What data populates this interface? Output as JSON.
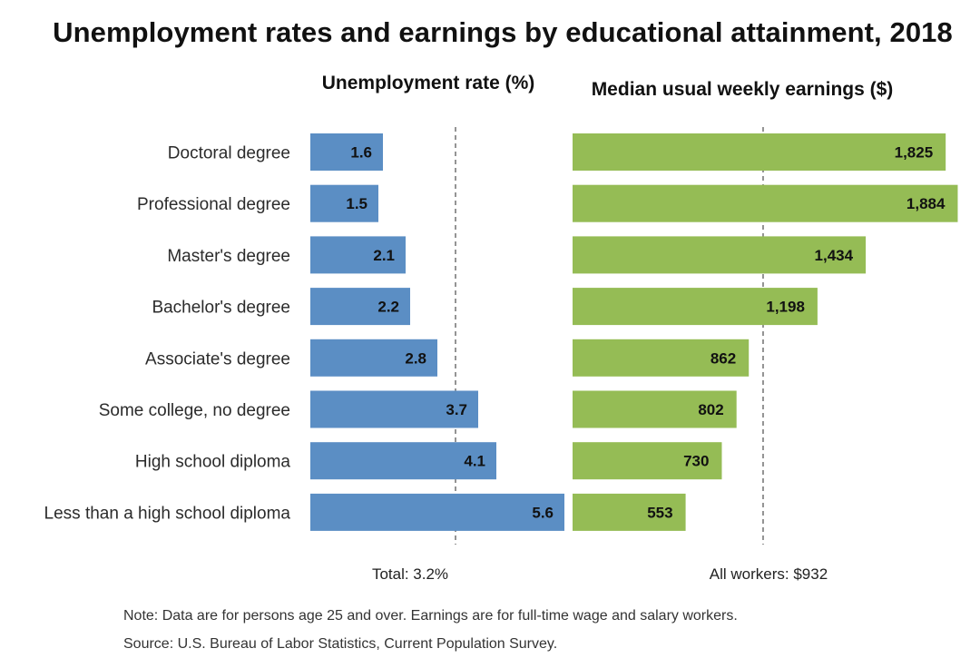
{
  "chart_data": {
    "title": "Unemployment rates and earnings by educational attainment, 2018",
    "type": "bar",
    "orientation": "horizontal",
    "categories": [
      "Doctoral degree",
      "Professional degree",
      "Master's degree",
      "Bachelor's degree",
      "Associate's degree",
      "Some college, no degree",
      "High school diploma",
      "Less than a high school diploma"
    ],
    "series": [
      {
        "name": "Unemployment rate (%)",
        "color": "#5b8ec4",
        "values": [
          1.6,
          1.5,
          2.1,
          2.2,
          2.8,
          3.7,
          4.1,
          5.6
        ],
        "labels": [
          "1.6",
          "1.5",
          "2.1",
          "2.2",
          "2.8",
          "3.7",
          "4.1",
          "5.6"
        ],
        "reference": {
          "value": 3.2,
          "label": "Total: 3.2%"
        }
      },
      {
        "name": "Median usual weekly earnings ($)",
        "color": "#95bc55",
        "values": [
          1825,
          1884,
          1434,
          1198,
          862,
          802,
          730,
          553
        ],
        "labels": [
          "1,825",
          "1,884",
          "1,434",
          "1,198",
          "862",
          "802",
          "730",
          "553"
        ],
        "reference": {
          "value": 932,
          "label": "All workers: $932"
        }
      }
    ],
    "grid": false,
    "axes_visible": false
  },
  "footnotes": {
    "note": "Note: Data are for persons age 25 and over. Earnings are for full-time wage and salary workers.",
    "source": "Source: U.S. Bureau of Labor Statistics, Current Population Survey."
  }
}
